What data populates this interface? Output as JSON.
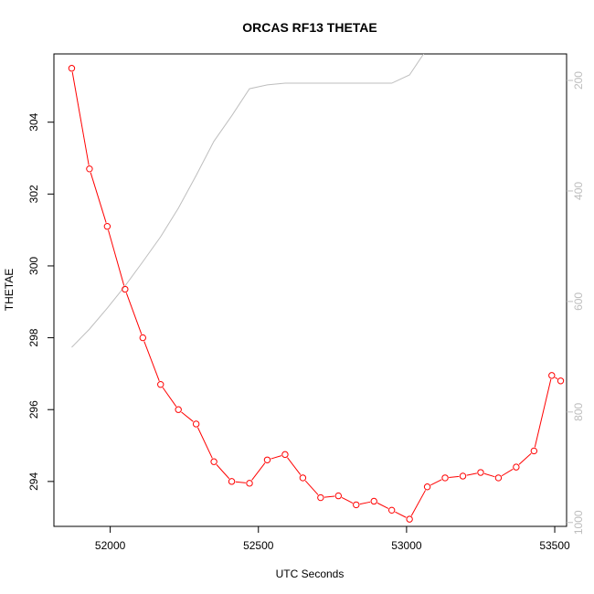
{
  "chart_data": {
    "type": "line",
    "title": "ORCAS RF13 THETAE",
    "xlabel": "UTC Seconds",
    "ylabel": "THETAE",
    "xlim": [
      51810,
      53540
    ],
    "ylim": [
      292.75,
      305.9
    ],
    "y2lim": [
      1007,
      152
    ],
    "x_ticks": [
      52000,
      52500,
      53000,
      53500
    ],
    "y_ticks": [
      294,
      296,
      298,
      300,
      302,
      304
    ],
    "y2_ticks": [
      200,
      400,
      600,
      800,
      1000
    ],
    "colors": {
      "thetae": "#ff0000",
      "pressure": "#bebebe",
      "axis": "#000000",
      "right_axis": "#bebebe"
    },
    "series": [
      {
        "key": "thetae",
        "axis": "left",
        "markers": true,
        "x": [
          51870,
          51930,
          51990,
          52050,
          52110,
          52170,
          52230,
          52290,
          52350,
          52410,
          52470,
          52530,
          52590,
          52650,
          52710,
          52770,
          52830,
          52890,
          52950,
          53010,
          53070,
          53130,
          53190,
          53250,
          53310,
          53370,
          53430,
          53490,
          53520
        ],
        "values": [
          305.5,
          302.7,
          301.1,
          299.35,
          298.0,
          296.7,
          296.0,
          295.6,
          294.55,
          294.0,
          293.95,
          294.6,
          294.75,
          294.1,
          293.55,
          293.6,
          293.35,
          293.45,
          293.2,
          292.95,
          293.85,
          294.1,
          294.15,
          294.25,
          294.1,
          294.4,
          294.85,
          296.95,
          296.8
        ]
      },
      {
        "key": "pressure",
        "axis": "right",
        "markers": false,
        "x": [
          51870,
          51930,
          51990,
          52050,
          52110,
          52170,
          52230,
          52290,
          52350,
          52410,
          52470,
          52530,
          52590,
          52650,
          52710,
          52770,
          52830,
          52890,
          52950,
          53010,
          53060
        ],
        "values": [
          683,
          650,
          612,
          572,
          528,
          483,
          431,
          372,
          310,
          264,
          215,
          208,
          205,
          205,
          205,
          205,
          205,
          205,
          205,
          190,
          150
        ]
      }
    ]
  }
}
